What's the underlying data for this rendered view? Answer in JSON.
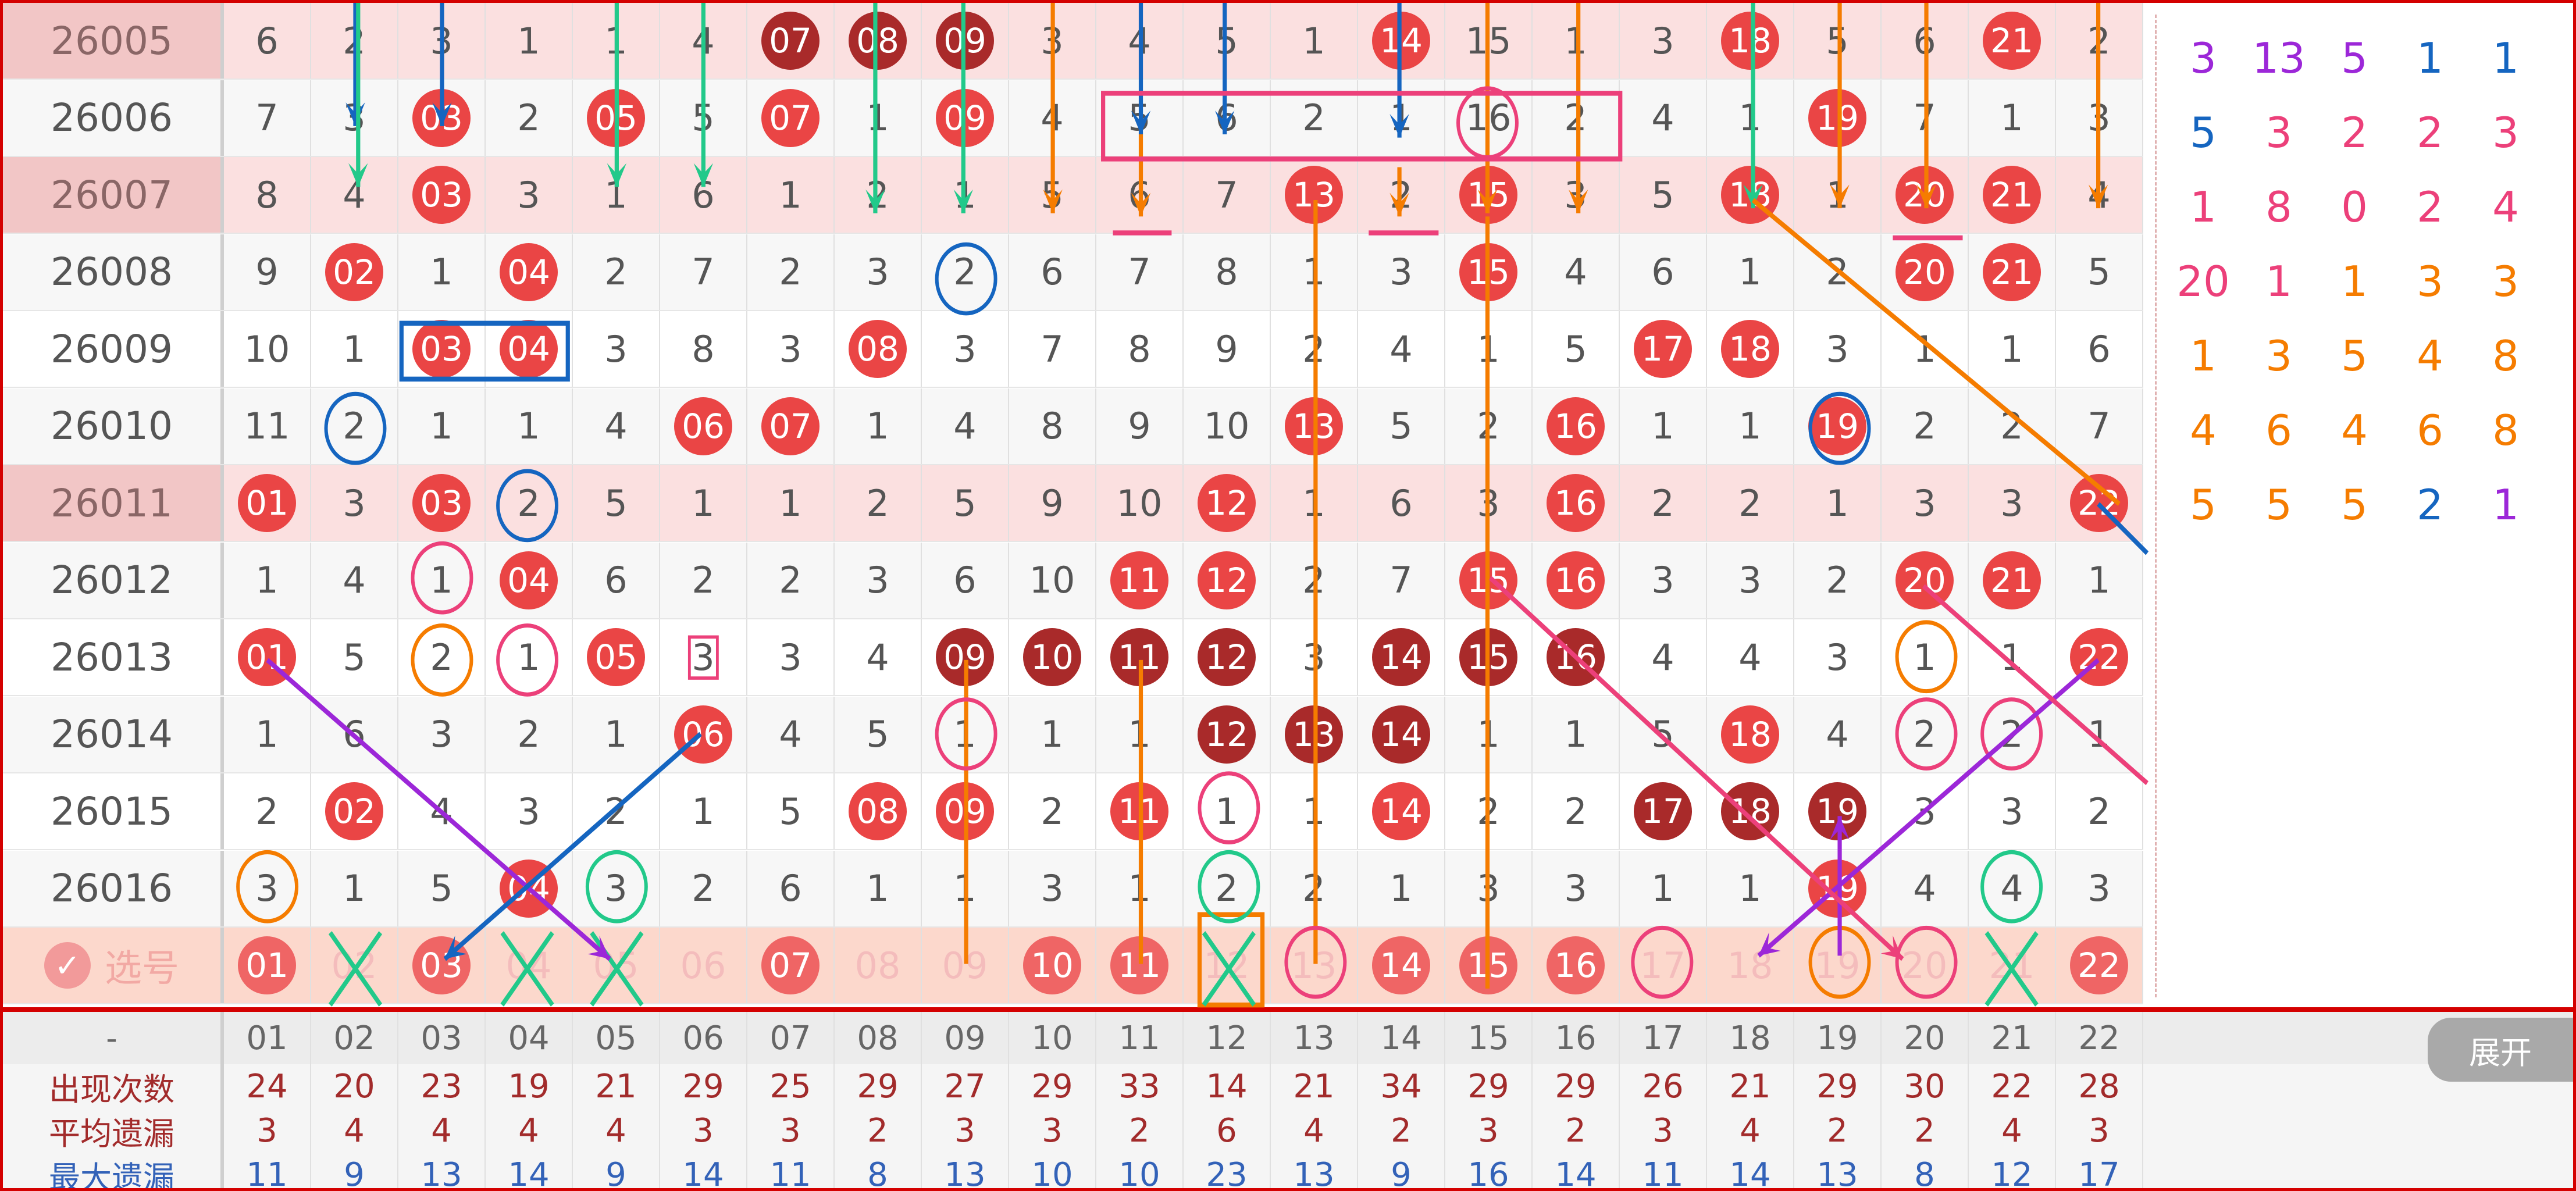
{
  "select_label": "选号",
  "check_icon": "checkmark-icon",
  "expand_label": "展开",
  "colors": {
    "ball": "#ea4545",
    "ball_dark": "#a92a2a",
    "highlight_row": "#fbe0e0",
    "border": "#d40000"
  },
  "rows": [
    {
      "issue": "26005",
      "hl": true,
      "cells": [
        "6",
        "2",
        "3",
        "1",
        "1",
        "4",
        "07",
        "08",
        "09",
        "3",
        "4",
        "5",
        "1",
        "14",
        "15",
        "1",
        "3",
        "18",
        "5",
        "6",
        "21",
        "2"
      ],
      "balls": [
        13,
        17,
        20
      ],
      "dark": [
        6,
        7,
        8
      ]
    },
    {
      "issue": "26006",
      "cells": [
        "7",
        "3",
        "03",
        "2",
        "05",
        "5",
        "07",
        "1",
        "09",
        "4",
        "5",
        "6",
        "2",
        "1",
        "16",
        "2",
        "4",
        "1",
        "19",
        "7",
        "1",
        "3"
      ],
      "balls": [
        2,
        4,
        6,
        8,
        18
      ],
      "dark": []
    },
    {
      "issue": "26007",
      "hl": true,
      "cells": [
        "8",
        "4",
        "03",
        "3",
        "1",
        "6",
        "1",
        "2",
        "1",
        "5",
        "6",
        "7",
        "13",
        "2",
        "15",
        "3",
        "5",
        "18",
        "1",
        "20",
        "21",
        "4"
      ],
      "balls": [
        2,
        12,
        14,
        17,
        19,
        20
      ],
      "dark": []
    },
    {
      "issue": "26008",
      "cells": [
        "9",
        "02",
        "1",
        "04",
        "2",
        "7",
        "2",
        "3",
        "2",
        "6",
        "7",
        "8",
        "1",
        "3",
        "15",
        "4",
        "6",
        "1",
        "2",
        "20",
        "21",
        "5"
      ],
      "balls": [
        1,
        3,
        14,
        19,
        20
      ],
      "dark": []
    },
    {
      "issue": "26009",
      "cells": [
        "10",
        "1",
        "03",
        "04",
        "3",
        "8",
        "3",
        "08",
        "3",
        "7",
        "8",
        "9",
        "2",
        "4",
        "1",
        "5",
        "17",
        "18",
        "3",
        "1",
        "1",
        "6"
      ],
      "balls": [
        2,
        3,
        7,
        16,
        17
      ],
      "dark": []
    },
    {
      "issue": "26010",
      "cells": [
        "11",
        "2",
        "1",
        "1",
        "4",
        "06",
        "07",
        "1",
        "4",
        "8",
        "9",
        "10",
        "13",
        "5",
        "2",
        "16",
        "1",
        "1",
        "19",
        "2",
        "2",
        "7"
      ],
      "balls": [
        5,
        6,
        12,
        15,
        18
      ],
      "dark": []
    },
    {
      "issue": "26011",
      "hl": true,
      "cells": [
        "01",
        "3",
        "03",
        "2",
        "5",
        "1",
        "1",
        "2",
        "5",
        "9",
        "10",
        "12",
        "1",
        "6",
        "3",
        "16",
        "2",
        "2",
        "1",
        "3",
        "3",
        "22"
      ],
      "balls": [
        0,
        2,
        11,
        15,
        21
      ],
      "dark": []
    },
    {
      "issue": "26012",
      "cells": [
        "1",
        "4",
        "1",
        "04",
        "6",
        "2",
        "2",
        "3",
        "6",
        "10",
        "11",
        "12",
        "2",
        "7",
        "15",
        "16",
        "3",
        "3",
        "2",
        "20",
        "21",
        "1"
      ],
      "balls": [
        3,
        10,
        11,
        14,
        15,
        19,
        20
      ],
      "dark": []
    },
    {
      "issue": "26013",
      "cells": [
        "01",
        "5",
        "2",
        "1",
        "05",
        "3",
        "3",
        "4",
        "09",
        "10",
        "11",
        "12",
        "3",
        "14",
        "15",
        "16",
        "4",
        "4",
        "3",
        "1",
        "1",
        "22"
      ],
      "balls": [
        0,
        4,
        21
      ],
      "dark": [
        8,
        9,
        10,
        11,
        13,
        14,
        15
      ]
    },
    {
      "issue": "26014",
      "cells": [
        "1",
        "6",
        "3",
        "2",
        "1",
        "06",
        "4",
        "5",
        "1",
        "1",
        "1",
        "12",
        "13",
        "14",
        "1",
        "1",
        "5",
        "18",
        "4",
        "2",
        "2",
        "1"
      ],
      "balls": [
        5,
        17
      ],
      "dark": [
        11,
        12,
        13
      ]
    },
    {
      "issue": "26015",
      "cells": [
        "2",
        "02",
        "4",
        "3",
        "2",
        "1",
        "5",
        "08",
        "09",
        "2",
        "11",
        "1",
        "1",
        "14",
        "2",
        "2",
        "17",
        "18",
        "19",
        "3",
        "3",
        "2"
      ],
      "balls": [
        1,
        7,
        8,
        10,
        13
      ],
      "dark": [
        16,
        17,
        18
      ]
    },
    {
      "issue": "26016",
      "cells": [
        "3",
        "1",
        "5",
        "04",
        "3",
        "2",
        "6",
        "1",
        "1",
        "3",
        "1",
        "2",
        "2",
        "1",
        "3",
        "3",
        "1",
        "1",
        "19",
        "4",
        "4",
        "3"
      ],
      "balls": [
        3,
        18
      ],
      "dark": []
    }
  ],
  "select_row": {
    "numbers": [
      "01",
      "02",
      "03",
      "04",
      "05",
      "06",
      "07",
      "08",
      "09",
      "10",
      "11",
      "12",
      "13",
      "14",
      "15",
      "16",
      "17",
      "18",
      "19",
      "20",
      "21",
      "22"
    ],
    "selected": [
      0,
      2,
      6,
      9,
      10,
      13,
      14,
      15,
      21
    ]
  },
  "stats": {
    "header_label": "-",
    "columns": [
      "01",
      "02",
      "03",
      "04",
      "05",
      "06",
      "07",
      "08",
      "09",
      "10",
      "11",
      "12",
      "13",
      "14",
      "15",
      "16",
      "17",
      "18",
      "19",
      "20",
      "21",
      "22"
    ],
    "rows": [
      {
        "label": "出现次数",
        "values": [
          "24",
          "20",
          "23",
          "19",
          "21",
          "29",
          "25",
          "29",
          "27",
          "29",
          "33",
          "14",
          "21",
          "34",
          "29",
          "29",
          "26",
          "21",
          "29",
          "30",
          "22",
          "28"
        ]
      },
      {
        "label": "平均遗漏",
        "values": [
          "3",
          "4",
          "4",
          "4",
          "4",
          "3",
          "3",
          "2",
          "3",
          "3",
          "2",
          "6",
          "4",
          "2",
          "3",
          "2",
          "3",
          "4",
          "2",
          "2",
          "4",
          "3"
        ]
      },
      {
        "label": "最大遗漏",
        "values": [
          "11",
          "9",
          "13",
          "14",
          "9",
          "14",
          "11",
          "8",
          "13",
          "10",
          "10",
          "23",
          "13",
          "9",
          "16",
          "14",
          "11",
          "14",
          "13",
          "8",
          "12",
          "17"
        ]
      }
    ]
  },
  "annotations": [
    "3",
    "13",
    "5",
    "1",
    "1",
    "5",
    "3",
    "2",
    "2",
    "3",
    "1",
    "8",
    "0",
    "2",
    "4",
    "20",
    "1",
    "1",
    "3",
    "3",
    "1",
    "3",
    "5",
    "4",
    "8",
    "4",
    "6",
    "4",
    "6",
    "8",
    "5",
    "5",
    "5",
    "2",
    "1"
  ]
}
